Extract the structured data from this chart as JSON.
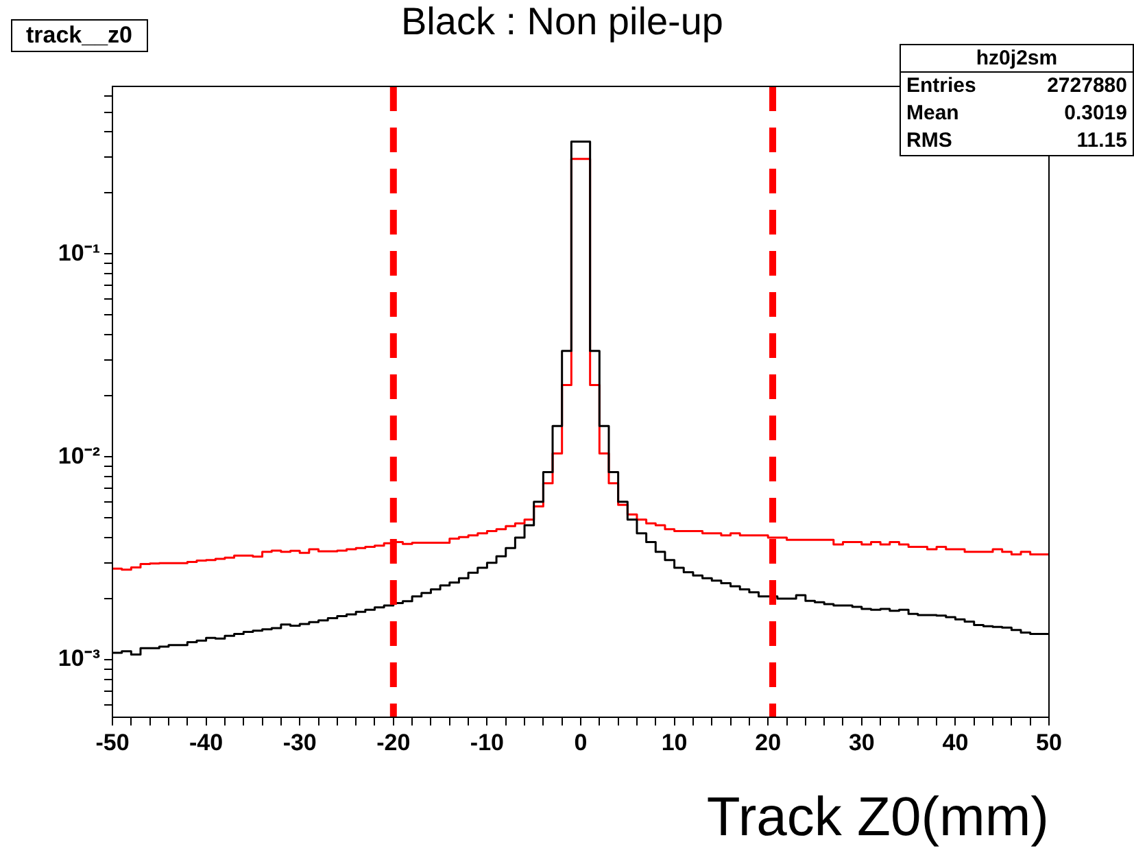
{
  "chart_data": {
    "type": "histogram",
    "title": "Black : Non pile-up",
    "xlabel": "Track Z0(mm)",
    "annotations": [
      "track__z0",
      "hz0j2sm",
      "Entries",
      "2727880",
      "Mean",
      "0.3019",
      "RMS",
      "11.15"
    ],
    "bins": [
      -50,
      -49,
      -48,
      -47,
      -46,
      -45,
      -44,
      -43,
      -42,
      -41,
      -40,
      -39,
      -38,
      -37,
      -36,
      -35,
      -34,
      -33,
      -32,
      -31,
      -30,
      -29,
      -28,
      -27,
      -26,
      -25,
      -24,
      -23,
      -22,
      -21,
      -20,
      -19,
      -18,
      -17,
      -16,
      -15,
      -14,
      -13,
      -12,
      -11,
      -10,
      -9,
      -8,
      -7,
      -6,
      -5,
      -4,
      -3,
      -2,
      -1,
      0,
      1,
      2,
      3,
      4,
      5,
      6,
      7,
      8,
      9,
      10,
      11,
      12,
      13,
      14,
      15,
      16,
      17,
      18,
      19,
      20,
      21,
      22,
      23,
      24,
      25,
      26,
      27,
      28,
      29,
      30,
      31,
      32,
      33,
      34,
      35,
      36,
      37,
      38,
      39,
      40,
      41,
      42,
      43,
      44,
      45,
      46,
      47,
      48,
      49,
      50
    ],
    "series": [
      {
        "color": "#000000",
        "values": [
          0.00108,
          0.0011,
          0.00106,
          0.00114,
          0.00114,
          0.00116,
          0.00118,
          0.00118,
          0.00122,
          0.00124,
          0.00128,
          0.00127,
          0.00131,
          0.00134,
          0.00137,
          0.00139,
          0.00141,
          0.00143,
          0.00149,
          0.00147,
          0.0015,
          0.00153,
          0.00156,
          0.0016,
          0.00164,
          0.00167,
          0.00172,
          0.00176,
          0.00181,
          0.00185,
          0.0019,
          0.00194,
          0.00205,
          0.00213,
          0.00222,
          0.00232,
          0.0024,
          0.00252,
          0.00268,
          0.00284,
          0.003,
          0.00323,
          0.00355,
          0.004,
          0.0046,
          0.006,
          0.0084,
          0.0142,
          0.0333,
          0.358,
          0.358,
          0.0333,
          0.0142,
          0.0084,
          0.006,
          0.0049,
          0.0042,
          0.0038,
          0.0034,
          0.0031,
          0.00284,
          0.0027,
          0.0026,
          0.00252,
          0.00245,
          0.00238,
          0.0023,
          0.00222,
          0.00215,
          0.00205,
          0.00205,
          0.002,
          0.002,
          0.00208,
          0.00195,
          0.00192,
          0.00188,
          0.00185,
          0.00185,
          0.00182,
          0.00178,
          0.00176,
          0.00178,
          0.00174,
          0.00176,
          0.00168,
          0.00166,
          0.00166,
          0.00165,
          0.00162,
          0.00158,
          0.00154,
          0.00148,
          0.00146,
          0.00145,
          0.00144,
          0.0014,
          0.00136,
          0.00134,
          0.00134
        ]
      },
      {
        "color": "#ff0000",
        "values": [
          0.00281,
          0.00278,
          0.00285,
          0.00296,
          0.00298,
          0.00299,
          0.00299,
          0.00299,
          0.00303,
          0.00308,
          0.0031,
          0.00314,
          0.00318,
          0.00326,
          0.00326,
          0.00322,
          0.0034,
          0.00345,
          0.0034,
          0.00344,
          0.00336,
          0.0035,
          0.00342,
          0.00342,
          0.00345,
          0.0035,
          0.00355,
          0.0036,
          0.00365,
          0.00375,
          0.0038,
          0.00372,
          0.00377,
          0.00377,
          0.00377,
          0.00377,
          0.00395,
          0.00402,
          0.0041,
          0.0042,
          0.0043,
          0.0044,
          0.00455,
          0.0047,
          0.0049,
          0.0057,
          0.0074,
          0.0104,
          0.0226,
          0.294,
          0.294,
          0.0226,
          0.0104,
          0.0074,
          0.0058,
          0.0052,
          0.0049,
          0.0047,
          0.0046,
          0.0044,
          0.0043,
          0.0043,
          0.0043,
          0.0042,
          0.0042,
          0.0041,
          0.0042,
          0.0041,
          0.0041,
          0.0041,
          0.004,
          0.004,
          0.0039,
          0.0039,
          0.0039,
          0.0039,
          0.0039,
          0.0037,
          0.0038,
          0.0038,
          0.0037,
          0.0038,
          0.0037,
          0.0038,
          0.0037,
          0.0036,
          0.0036,
          0.0035,
          0.0036,
          0.0035,
          0.0035,
          0.0034,
          0.0034,
          0.0034,
          0.0035,
          0.0034,
          0.0033,
          0.0034,
          0.0033,
          0.0033
        ]
      }
    ],
    "xlim": [
      -50,
      50
    ],
    "xticks": [
      -50,
      {
        "value": -48,
        "label": null
      },
      {
        "value": -46,
        "label": null
      },
      {
        "value": -44,
        "label": null
      },
      {
        "value": -42,
        "label": null
      },
      -40,
      {
        "value": -38,
        "label": null
      },
      {
        "value": -36,
        "label": null
      },
      {
        "value": -34,
        "label": null
      },
      {
        "value": -32,
        "label": null
      },
      -30,
      {
        "value": -28,
        "label": null
      },
      {
        "value": -26,
        "label": null
      },
      {
        "value": -24,
        "label": null
      },
      {
        "value": -22,
        "label": null
      },
      -20,
      {
        "value": -18,
        "label": null
      },
      {
        "value": -16,
        "label": null
      },
      {
        "value": -14,
        "label": null
      },
      {
        "value": -12,
        "label": null
      },
      -10,
      {
        "value": -8,
        "label": null
      },
      {
        "value": -6,
        "label": null
      },
      {
        "value": -4,
        "label": null
      },
      {
        "value": -2,
        "label": null
      },
      0,
      {
        "value": 2,
        "label": null
      },
      {
        "value": 4,
        "label": null
      },
      {
        "value": 6,
        "label": null
      },
      {
        "value": 8,
        "label": null
      },
      10,
      {
        "value": 12,
        "label": null
      },
      {
        "value": 14,
        "label": null
      },
      {
        "value": 16,
        "label": null
      },
      {
        "value": 18,
        "label": null
      },
      20,
      {
        "value": 22,
        "label": null
      },
      {
        "value": 24,
        "label": null
      },
      {
        "value": 26,
        "label": null
      },
      {
        "value": 28,
        "label": null
      },
      30,
      {
        "value": 32,
        "label": null
      },
      {
        "value": 34,
        "label": null
      },
      {
        "value": 36,
        "label": null
      },
      {
        "value": 38,
        "label": null
      },
      40,
      {
        "value": 42,
        "label": null
      },
      {
        "value": 44,
        "label": null
      },
      {
        "value": 46,
        "label": null
      },
      {
        "value": 48,
        "label": null
      },
      50
    ],
    "ylim": [
      0.00052,
      0.67
    ],
    "yticks": [
      {
        "value": 0.0006,
        "label": null
      },
      {
        "value": 0.0007,
        "label": null
      },
      {
        "value": 0.0008,
        "label": null
      },
      {
        "value": 0.0009,
        "label": null
      },
      {
        "value": 0.001,
        "label": "10⁻³"
      },
      {
        "value": 0.002,
        "label": null
      },
      {
        "value": 0.003,
        "label": null
      },
      {
        "value": 0.004,
        "label": null
      },
      {
        "value": 0.005,
        "label": null
      },
      {
        "value": 0.006,
        "label": null
      },
      {
        "value": 0.007,
        "label": null
      },
      {
        "value": 0.008,
        "label": null
      },
      {
        "value": 0.009,
        "label": null
      },
      {
        "value": 0.01,
        "label": "10⁻²"
      },
      {
        "value": 0.02,
        "label": null
      },
      {
        "value": 0.03,
        "label": null
      },
      {
        "value": 0.04,
        "label": null
      },
      {
        "value": 0.05,
        "label": null
      },
      {
        "value": 0.06,
        "label": null
      },
      {
        "value": 0.07,
        "label": null
      },
      {
        "value": 0.08,
        "label": null
      },
      {
        "value": 0.09,
        "label": null
      },
      {
        "value": 0.1,
        "label": "10⁻¹"
      },
      {
        "value": 0.2,
        "label": null
      },
      {
        "value": 0.3,
        "label": null
      },
      {
        "value": 0.4,
        "label": null
      },
      {
        "value": 0.5,
        "label": null
      },
      {
        "value": 0.6,
        "label": null
      }
    ],
    "log": "y",
    "grid": false,
    "legend": false,
    "ref_lines": [
      {
        "axis": "x",
        "value": -20,
        "color": "#ff0000",
        "line_style": "dashed"
      },
      {
        "axis": "x",
        "value": 20.5,
        "color": "#ff0000",
        "line_style": "dashed"
      }
    ]
  }
}
